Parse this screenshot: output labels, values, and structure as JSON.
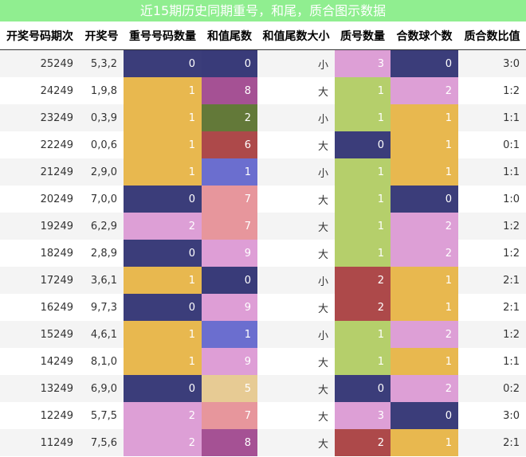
{
  "title": "近15期历史同期重号，和尾，质合图示数据",
  "headers": [
    "开奖号码期次",
    "开奖号",
    "重号号码数量",
    "和值尾数",
    "和值尾数大小",
    "质号数量",
    "合数球个数",
    "质合数比值"
  ],
  "rows": [
    {
      "period": "25249",
      "numbers": "5,3,2",
      "repeat": "0",
      "sum_tail": "0",
      "size": "小",
      "prime": "3",
      "composite": "0",
      "ratio": "3:0"
    },
    {
      "period": "24249",
      "numbers": "1,9,8",
      "repeat": "1",
      "sum_tail": "8",
      "size": "大",
      "prime": "1",
      "composite": "2",
      "ratio": "1:2"
    },
    {
      "period": "23249",
      "numbers": "0,3,9",
      "repeat": "1",
      "sum_tail": "2",
      "size": "小",
      "prime": "1",
      "composite": "1",
      "ratio": "1:1"
    },
    {
      "period": "22249",
      "numbers": "0,0,6",
      "repeat": "1",
      "sum_tail": "6",
      "size": "大",
      "prime": "0",
      "composite": "1",
      "ratio": "0:1"
    },
    {
      "period": "21249",
      "numbers": "2,9,0",
      "repeat": "1",
      "sum_tail": "1",
      "size": "小",
      "prime": "1",
      "composite": "1",
      "ratio": "1:1"
    },
    {
      "period": "20249",
      "numbers": "7,0,0",
      "repeat": "0",
      "sum_tail": "7",
      "size": "大",
      "prime": "1",
      "composite": "0",
      "ratio": "1:0"
    },
    {
      "period": "19249",
      "numbers": "6,2,9",
      "repeat": "2",
      "sum_tail": "7",
      "size": "大",
      "prime": "1",
      "composite": "2",
      "ratio": "1:2"
    },
    {
      "period": "18249",
      "numbers": "2,8,9",
      "repeat": "0",
      "sum_tail": "9",
      "size": "大",
      "prime": "1",
      "composite": "2",
      "ratio": "1:2"
    },
    {
      "period": "17249",
      "numbers": "3,6,1",
      "repeat": "1",
      "sum_tail": "0",
      "size": "小",
      "prime": "2",
      "composite": "1",
      "ratio": "2:1"
    },
    {
      "period": "16249",
      "numbers": "9,7,3",
      "repeat": "0",
      "sum_tail": "9",
      "size": "大",
      "prime": "2",
      "composite": "1",
      "ratio": "2:1"
    },
    {
      "period": "15249",
      "numbers": "4,6,1",
      "repeat": "1",
      "sum_tail": "1",
      "size": "小",
      "prime": "1",
      "composite": "2",
      "ratio": "1:2"
    },
    {
      "period": "14249",
      "numbers": "8,1,0",
      "repeat": "1",
      "sum_tail": "9",
      "size": "大",
      "prime": "1",
      "composite": "1",
      "ratio": "1:1"
    },
    {
      "period": "13249",
      "numbers": "6,9,0",
      "repeat": "0",
      "sum_tail": "5",
      "size": "大",
      "prime": "0",
      "composite": "2",
      "ratio": "0:2"
    },
    {
      "period": "12249",
      "numbers": "5,7,5",
      "repeat": "2",
      "sum_tail": "7",
      "size": "大",
      "prime": "3",
      "composite": "0",
      "ratio": "3:0"
    },
    {
      "period": "11249",
      "numbers": "7,5,6",
      "repeat": "2",
      "sum_tail": "8",
      "size": "大",
      "prime": "2",
      "composite": "1",
      "ratio": "2:1"
    }
  ],
  "count_colors": {
    "0": "#3b3d7a",
    "1": "#e8b84f",
    "2": "#dd9fd6",
    "3": "#dd9fd6"
  },
  "prime_colors": {
    "0": "#3b3d7a",
    "1": "#b5cf6b",
    "2": "#ad494a",
    "3": "#dd9fd6"
  },
  "sum_tail_colors": {
    "0": "#393b79",
    "1": "#6b6ecf",
    "2": "#637939",
    "5": "#e7cb94",
    "6": "#ad494a",
    "7": "#e7969c",
    "8": "#a55194",
    "9": "#de9ed6"
  }
}
